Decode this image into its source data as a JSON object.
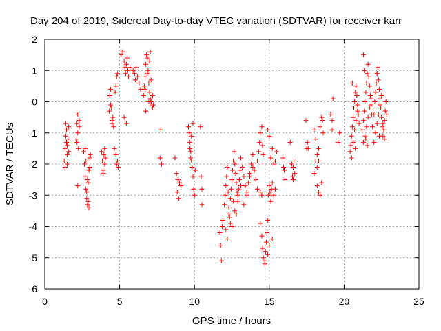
{
  "chart_data": {
    "type": "scatter",
    "title": "Day 204 of 2019, Sidereal Day-to-day VTEC variation (SDTVAR) for receiver karr",
    "xlabel": "GPS time / hours",
    "ylabel": "SDTVAR / TECUs",
    "xlim": [
      0,
      25
    ],
    "ylim": [
      -6,
      2
    ],
    "xticks": [
      0,
      5,
      10,
      15,
      20,
      25
    ],
    "yticks": [
      -6,
      -5,
      -4,
      -3,
      -2,
      -1,
      0,
      1,
      2
    ],
    "grid": true,
    "marker": "+",
    "color": "#ff0000",
    "series": [
      {
        "name": "SDTVAR",
        "x": [
          1.3,
          1.35,
          1.4,
          1.4,
          1.45,
          1.5,
          1.5,
          1.55,
          1.6,
          1.6,
          1.35,
          1.45,
          1.5,
          2.1,
          2.15,
          2.2,
          2.2,
          2.25,
          2.3,
          2.2,
          2.3,
          2.15,
          2.6,
          2.65,
          2.7,
          2.75,
          2.8,
          2.85,
          2.9,
          2.95,
          3.0,
          2.7,
          2.8,
          2.9,
          2.95,
          3.05,
          2.75,
          2.85,
          3.0,
          3.8,
          3.85,
          3.9,
          3.95,
          4.0,
          4.05,
          3.9,
          4.0,
          4.3,
          4.35,
          4.4,
          4.45,
          4.5,
          4.55,
          4.6,
          4.7,
          4.8,
          4.4,
          4.5,
          4.65,
          4.75,
          4.8,
          4.85,
          4.9,
          4.75,
          4.85,
          5.1,
          5.2,
          5.3,
          5.35,
          5.4,
          5.45,
          5.5,
          5.55,
          5.6,
          5.7,
          5.3,
          5.45,
          5.9,
          6.0,
          6.05,
          6.1,
          6.2,
          6.3,
          6.4,
          6.6,
          6.65,
          6.7,
          6.75,
          6.8,
          6.85,
          6.9,
          6.95,
          7.0,
          7.05,
          7.1,
          7.15,
          7.2,
          7.25,
          6.7,
          6.85,
          7.0,
          7.1,
          7.2,
          6.75,
          6.95,
          7.05,
          7.7,
          7.8,
          7.75,
          8.7,
          8.8,
          8.9,
          9.0,
          9.1,
          8.85,
          8.95,
          9.6,
          9.65,
          9.7,
          9.75,
          9.8,
          9.85,
          9.9,
          9.95,
          10.0,
          10.05,
          9.7,
          9.8,
          9.9,
          9.75,
          10.4,
          10.45,
          10.5,
          10.5,
          11.7,
          11.75,
          11.8,
          11.85,
          11.9,
          12.0,
          12.05,
          12.1,
          12.15,
          12.2,
          12.25,
          12.3,
          12.35,
          12.4,
          12.45,
          12.5,
          12.55,
          12.6,
          12.65,
          12.7,
          12.75,
          12.8,
          12.85,
          12.9,
          12.95,
          13.0,
          13.05,
          13.1,
          13.2,
          13.3,
          13.4,
          13.5,
          13.6,
          13.7,
          13.8,
          13.9,
          14.0,
          14.1,
          14.2,
          12.1,
          12.3,
          12.5,
          12.7,
          12.9,
          13.1,
          13.3,
          13.5,
          13.7,
          13.9,
          12.2,
          12.4,
          12.6,
          12.8,
          14.2,
          14.3,
          14.35,
          14.4,
          14.5,
          14.55,
          14.6,
          14.4,
          14.5,
          14.4,
          14.5,
          14.55,
          14.6,
          14.7,
          14.75,
          14.8,
          14.85,
          14.9,
          14.95,
          15.0,
          15.05,
          15.1,
          15.15,
          15.2,
          15.3,
          15.4,
          14.7,
          14.9,
          15.0,
          15.2,
          15.1,
          15.2,
          15.3,
          15.4,
          15.5,
          14.9,
          15.0,
          15.9,
          16.0,
          16.05,
          15.95,
          16.4,
          16.5,
          16.55,
          16.6,
          16.65,
          16.7,
          16.6,
          17.5,
          17.55,
          17.6,
          17.45,
          18.0,
          18.1,
          18.2,
          18.3,
          18.4,
          18.5,
          18.55,
          18.6,
          18.2,
          18.3,
          18.4,
          18.5,
          18.0,
          18.1,
          18.2,
          18.3,
          19.1,
          19.2,
          19.2,
          19.25,
          19.6,
          19.7,
          20.4,
          20.45,
          20.5,
          20.55,
          20.6,
          20.65,
          20.7,
          20.75,
          20.8,
          20.85,
          20.9,
          20.95,
          21.0,
          20.5,
          20.6,
          20.7,
          20.8,
          20.9,
          20.55,
          20.75,
          21.2,
          21.3,
          21.35,
          21.4,
          21.45,
          21.5,
          21.55,
          21.6,
          21.65,
          21.7,
          21.75,
          21.8,
          21.85,
          21.3,
          21.4,
          21.5,
          21.6,
          21.7,
          21.8,
          21.3,
          21.35,
          21.45,
          21.55,
          21.9,
          22.0,
          22.05,
          22.1,
          22.15,
          22.2,
          22.25,
          22.3,
          22.35,
          22.4,
          22.45,
          22.5,
          22.55,
          22.6,
          22.65,
          22.7,
          22.75,
          22.8,
          22.85,
          22.0,
          22.1,
          22.2,
          22.3,
          22.4,
          22.5,
          22.6,
          22.7,
          22.2,
          22.35
        ],
        "y": [
          -1.9,
          -1.5,
          -1.1,
          -0.7,
          -1.3,
          -1.7,
          -2.0,
          -1.2,
          -0.8,
          -1.6,
          -2.1,
          -0.9,
          -1.4,
          -1.2,
          -0.7,
          -0.4,
          -1.0,
          -1.5,
          -0.8,
          -2.7,
          -0.6,
          -1.3,
          -1.6,
          -2.0,
          -2.4,
          -2.8,
          -3.1,
          -3.3,
          -2.6,
          -2.2,
          -1.8,
          -1.5,
          -2.9,
          -3.2,
          -3.4,
          -1.7,
          -1.9,
          -2.5,
          -2.1,
          -1.6,
          -1.9,
          -2.2,
          -1.7,
          -2.0,
          -1.8,
          -2.3,
          -1.5,
          -0.3,
          0.2,
          0.4,
          -0.2,
          -0.6,
          -0.5,
          -0.8,
          0.3,
          0.8,
          -0.1,
          -0.7,
          -1.5,
          -1.7,
          -2.0,
          -1.9,
          -2.1,
          0.5,
          0.9,
          1.5,
          1.6,
          1.3,
          1.1,
          0.9,
          1.2,
          1.4,
          1.0,
          0.8,
          1.1,
          -0.5,
          -0.7,
          1.0,
          0.9,
          0.7,
          1.1,
          0.8,
          0.6,
          0.4,
          0.2,
          0.5,
          0.8,
          1.2,
          1.5,
          1.4,
          1.0,
          0.6,
          0.3,
          0.1,
          0.0,
          -0.1,
          -0.2,
          -0.1,
          0.4,
          0.9,
          1.3,
          0.7,
          0.2,
          -0.3,
          0.0,
          1.6,
          -1.8,
          -2.0,
          -0.9,
          -1.8,
          -2.3,
          -2.5,
          -2.6,
          -2.7,
          -2.9,
          -3.1,
          -0.8,
          -1.0,
          -1.3,
          -1.6,
          -1.9,
          -2.1,
          -2.4,
          -2.8,
          -3.0,
          -2.2,
          -1.5,
          -1.1,
          -0.7,
          -1.8,
          -0.8,
          -2.4,
          -2.8,
          -3.3,
          -4.2,
          -4.6,
          -5.1,
          -4.0,
          -3.8,
          -3.3,
          -3.0,
          -2.7,
          -2.4,
          -2.1,
          -2.9,
          -3.4,
          -3.7,
          -3.1,
          -2.8,
          -2.5,
          -2.2,
          -1.9,
          -1.6,
          -2.0,
          -2.3,
          -2.6,
          -2.9,
          -3.2,
          -2.8,
          -2.5,
          -2.2,
          -1.8,
          -2.1,
          -2.4,
          -2.7,
          -3.0,
          -2.6,
          -2.3,
          -2.0,
          -1.7,
          -2.2,
          -2.5,
          -2.8,
          -4.1,
          -3.6,
          -4.0,
          -3.5,
          -3.0,
          -2.7,
          -3.3,
          -2.9,
          -2.4,
          -2.1,
          -4.4,
          -3.9,
          -3.2,
          -3.6,
          -1.9,
          -1.6,
          -1.3,
          -1.0,
          -0.8,
          -1.4,
          -1.7,
          -2.9,
          -3.0,
          -3.9,
          -4.3,
          -4.7,
          -5.0,
          -5.2,
          -4.8,
          -4.5,
          -4.2,
          -3.8,
          -3.0,
          -2.7,
          -2.9,
          -3.2,
          -2.8,
          -2.6,
          -3.0,
          -2.8,
          -5.1,
          -4.9,
          -4.6,
          -4.4,
          -1.8,
          -1.5,
          -2.0,
          -1.9,
          -1.6,
          -0.9,
          -1.1,
          -1.8,
          -2.2,
          -2.5,
          -2.1,
          -1.3,
          -2.0,
          -2.4,
          -2.1,
          -1.9,
          -2.3,
          -2.5,
          -1.5,
          -1.3,
          -1.5,
          -0.6,
          -0.9,
          -1.2,
          -1.7,
          -1.9,
          -0.8,
          -0.5,
          -0.6,
          -1.0,
          -2.7,
          -2.9,
          -3.0,
          -2.6,
          -2.3,
          -1.9,
          -2.1,
          -1.5,
          -0.4,
          -0.6,
          -0.9,
          0.1,
          -1.3,
          -1.0,
          -1.6,
          -1.4,
          -1.1,
          -0.8,
          -0.5,
          -0.2,
          0.0,
          0.3,
          0.5,
          0.2,
          -0.1,
          -0.4,
          -0.7,
          -1.8,
          -1.3,
          -0.9,
          -0.6,
          -0.3,
          0.6,
          -1.5,
          -0.9,
          -0.6,
          -0.3,
          0.0,
          0.3,
          0.6,
          0.9,
          1.2,
          0.8,
          0.5,
          0.2,
          -0.1,
          -0.4,
          -1.3,
          -1.1,
          -0.8,
          -0.5,
          -0.2,
          0.1,
          1.5,
          1.0,
          -1.2,
          -1.4,
          -0.8,
          -0.4,
          0.0,
          0.3,
          0.6,
          0.9,
          1.1,
          0.7,
          0.4,
          0.1,
          -0.2,
          -0.5,
          -0.8,
          -1.1,
          -0.9,
          -0.6,
          -0.3,
          0.0,
          -0.4,
          -1.3,
          -1.0,
          -0.7,
          -0.4,
          -0.1,
          0.2,
          -0.7,
          -1.2,
          0.9,
          -1.1
        ]
      }
    ]
  }
}
